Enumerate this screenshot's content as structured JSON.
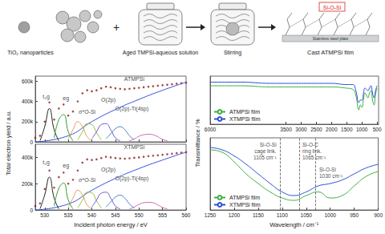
{
  "schematic": {
    "nanoparticles": "TiO₂ nanoparticles",
    "operator": "+",
    "solution": "Aged TMPSi-aqueous solution",
    "mixing": "Stirring",
    "film": "Cast ATMPSi film",
    "bond": "Si-O-Si",
    "substrate": "Stainless steel plate"
  },
  "chart_data": [
    {
      "type": "line",
      "ylabel": "Total electron yield / a.u.",
      "xlim": [
        528,
        560
      ],
      "xticks": [
        530,
        535,
        540,
        545,
        550,
        555,
        560
      ],
      "ylim": [
        0,
        650000
      ],
      "yticks": [
        0,
        {
          "value": 200000,
          "label": "200k"
        },
        {
          "value": 400000,
          "label": "400k"
        },
        {
          "value": 600000,
          "label": "600k"
        }
      ],
      "tick_labels": "y",
      "grid": false,
      "series": [
        {
          "type": "line",
          "color": "#3355dd",
          "line_style": "solid",
          "x": [
            528,
            535,
            540,
            545,
            550,
            555,
            560
          ],
          "values": [
            0,
            60000,
            200000,
            320000,
            420000,
            510000,
            590000
          ]
        },
        {
          "type": "line",
          "color": "#222222",
          "line_style": "solid",
          "x": [
            529,
            530,
            531,
            532,
            533
          ],
          "values": [
            10000,
            150000,
            330000,
            120000,
            10000
          ]
        },
        {
          "type": "line",
          "color": "#2e9e2e",
          "line_style": "solid",
          "x": [
            532,
            533,
            534,
            535,
            536
          ],
          "values": [
            40000,
            220000,
            270000,
            100000,
            10000
          ]
        },
        {
          "type": "line",
          "color": "#e89c5a",
          "line_style": "solid",
          "x": [
            535,
            536,
            537,
            538,
            539,
            540
          ],
          "values": [
            30000,
            120000,
            200000,
            150000,
            50000,
            10000
          ]
        },
        {
          "type": "line",
          "color": "#9bbb3c",
          "line_style": "solid",
          "x": [
            537,
            538,
            539,
            540,
            541,
            542
          ],
          "values": [
            20000,
            100000,
            180000,
            170000,
            90000,
            20000
          ]
        },
        {
          "type": "line",
          "color": "#6a5acd",
          "line_style": "solid",
          "x": [
            540,
            541,
            542,
            543,
            544,
            545,
            546
          ],
          "values": [
            30000,
            100000,
            170000,
            180000,
            120000,
            40000,
            10000
          ]
        },
        {
          "type": "line",
          "color": "#4a7fd0",
          "line_style": "solid",
          "x": [
            543,
            544,
            545,
            546,
            547,
            548,
            549
          ],
          "values": [
            30000,
            80000,
            130000,
            150000,
            120000,
            60000,
            20000
          ]
        },
        {
          "type": "line",
          "color": "#c86ab8",
          "line_style": "solid",
          "x": [
            548,
            549,
            550,
            551,
            552,
            553,
            554,
            555,
            556
          ],
          "values": [
            10000,
            30000,
            55000,
            70000,
            75000,
            70000,
            50000,
            25000,
            10000
          ]
        },
        {
          "type": "scatter",
          "color": "#8b1a1a",
          "marker": "circle",
          "x": [
            528,
            529,
            530,
            531,
            532,
            533,
            534,
            535,
            536,
            537,
            538,
            539,
            540,
            541,
            542,
            543,
            544,
            545,
            546,
            547,
            548,
            549,
            550,
            551,
            552,
            553,
            554,
            555,
            556,
            557,
            558,
            559,
            560
          ],
          "values": [
            40000,
            60000,
            200000,
            390000,
            220000,
            330000,
            370000,
            260000,
            300000,
            400000,
            480000,
            510000,
            500000,
            510000,
            530000,
            545000,
            540000,
            530000,
            525000,
            520000,
            525000,
            530000,
            535000,
            540000,
            545000,
            550000,
            555000,
            560000,
            565000,
            570000,
            575000,
            580000,
            585000
          ]
        }
      ],
      "annotations": [
        {
          "text": "t₂g",
          "x": 530.3,
          "y": 450000
        },
        {
          "text": "eg",
          "x": 534.5,
          "y": 430000
        },
        {
          "text": "σ*O-Si",
          "x": 539,
          "y": 300000
        },
        {
          "text": "O(2p)",
          "x": 543.5,
          "y": 420000
        },
        {
          "text": "O(2p)-Ti(4sp)",
          "x": 548.5,
          "y": 330000
        },
        {
          "text": "ATMPSi",
          "x": 549,
          "y": 620000
        }
      ]
    },
    {
      "type": "line",
      "xlabel": "Incident photon energy / eV",
      "xlim": [
        528,
        560
      ],
      "xticks": [
        530,
        535,
        540,
        545,
        550,
        555,
        560
      ],
      "ylim": [
        0,
        500000
      ],
      "yticks": [
        0,
        {
          "value": 200000,
          "label": "200k"
        },
        {
          "value": 400000,
          "label": "400k"
        }
      ],
      "grid": false,
      "series": [
        {
          "type": "line",
          "color": "#3355dd",
          "line_style": "solid",
          "x": [
            528,
            535,
            540,
            545,
            550,
            555,
            560
          ],
          "values": [
            0,
            45000,
            150000,
            240000,
            315000,
            380000,
            440000
          ]
        },
        {
          "type": "line",
          "color": "#222222",
          "line_style": "solid",
          "x": [
            529,
            530,
            531,
            532,
            533
          ],
          "values": [
            8000,
            115000,
            250000,
            90000,
            8000
          ]
        },
        {
          "type": "line",
          "color": "#2e9e2e",
          "line_style": "solid",
          "x": [
            532,
            533,
            534,
            535,
            536
          ],
          "values": [
            30000,
            165000,
            205000,
            75000,
            8000
          ]
        },
        {
          "type": "line",
          "color": "#e89c5a",
          "line_style": "solid",
          "x": [
            535,
            536,
            537,
            538,
            539,
            540
          ],
          "values": [
            22000,
            90000,
            150000,
            115000,
            38000,
            8000
          ]
        },
        {
          "type": "line",
          "color": "#9bbb3c",
          "line_style": "solid",
          "x": [
            537,
            538,
            539,
            540,
            541,
            542
          ],
          "values": [
            15000,
            75000,
            135000,
            130000,
            68000,
            15000
          ]
        },
        {
          "type": "line",
          "color": "#6a5acd",
          "line_style": "solid",
          "x": [
            540,
            541,
            542,
            543,
            544,
            545,
            546
          ],
          "values": [
            22000,
            75000,
            128000,
            135000,
            90000,
            30000,
            8000
          ]
        },
        {
          "type": "line",
          "color": "#4a7fd0",
          "line_style": "solid",
          "x": [
            543,
            544,
            545,
            546,
            547,
            548,
            549
          ],
          "values": [
            22000,
            60000,
            98000,
            112000,
            90000,
            45000,
            15000
          ]
        },
        {
          "type": "line",
          "color": "#c86ab8",
          "line_style": "solid",
          "x": [
            548,
            549,
            550,
            551,
            552,
            553,
            554,
            555,
            556
          ],
          "values": [
            8000,
            22000,
            42000,
            55000,
            58000,
            55000,
            38000,
            19000,
            8000
          ]
        },
        {
          "type": "scatter",
          "color": "#8b1a1a",
          "marker": "circle",
          "x": [
            528,
            529,
            530,
            531,
            532,
            533,
            534,
            535,
            536,
            537,
            538,
            539,
            540,
            541,
            542,
            543,
            544,
            545,
            546,
            547,
            548,
            549,
            550,
            551,
            552,
            553,
            554,
            555,
            556,
            557,
            558,
            559,
            560
          ],
          "values": [
            30000,
            50000,
            160000,
            300000,
            170000,
            250000,
            285000,
            200000,
            230000,
            300000,
            360000,
            385000,
            380000,
            385000,
            395000,
            405000,
            400000,
            395000,
            392000,
            390000,
            393000,
            397000,
            400000,
            405000,
            410000,
            413000,
            416000,
            420000,
            424000,
            428000,
            432000,
            436000,
            440000
          ]
        }
      ],
      "annotations": [
        {
          "text": "t₂g",
          "x": 530.3,
          "y": 360000
        },
        {
          "text": "eg",
          "x": 534.5,
          "y": 340000
        },
        {
          "text": "σ*O-Si",
          "x": 539,
          "y": 230000
        },
        {
          "text": "O(2p)",
          "x": 543.5,
          "y": 310000
        },
        {
          "text": "O(2p)-Ti(4sp)",
          "x": 548.5,
          "y": 240000
        },
        {
          "text": "XTMPSi",
          "x": 549,
          "y": 480000
        }
      ]
    },
    {
      "type": "line",
      "ylabel": "Transmittance / %",
      "xlim": [
        6000,
        450
      ],
      "xticks": [
        6000,
        3500,
        3000,
        2500,
        2000,
        1500,
        1000,
        500
      ],
      "ylim": [
        60,
        100
      ],
      "tick_labels": "x",
      "grid": false,
      "legend": "bottom-left",
      "x": [
        6000,
        5000,
        4000,
        3500,
        3000,
        2500,
        2000,
        1500,
        1300,
        1200,
        1100,
        1050,
        1000,
        950,
        900,
        850,
        800,
        750,
        700,
        650,
        600,
        550,
        500
      ],
      "series": [
        {
          "name": "ATMPSi film",
          "color": "#3cb043",
          "line_style": "solid",
          "values": [
            92,
            92,
            91,
            91,
            91,
            91,
            91,
            90,
            89,
            84,
            72,
            76,
            74,
            80,
            86,
            84,
            82,
            86,
            88,
            80,
            76,
            85,
            90
          ]
        },
        {
          "name": "XTMPSi film",
          "color": "#2a4fd6",
          "line_style": "solid",
          "values": [
            95,
            95,
            94,
            94,
            94,
            94,
            94,
            93,
            93,
            88,
            78,
            80,
            80,
            85,
            90,
            89,
            88,
            90,
            92,
            86,
            82,
            88,
            92
          ]
        }
      ]
    },
    {
      "type": "line",
      "xlabel": "Wavelength / cm⁻¹",
      "xlim": [
        1250,
        900
      ],
      "xticks": [
        1250,
        1200,
        1150,
        1100,
        1050,
        1000,
        950,
        900
      ],
      "ylim": [
        40,
        100
      ],
      "tick_labels": "x",
      "grid": false,
      "legend": "bottom-left",
      "x": [
        1250,
        1225,
        1200,
        1175,
        1150,
        1125,
        1100,
        1075,
        1050,
        1025,
        1000,
        975,
        950,
        925,
        900
      ],
      "series": [
        {
          "name": "ATMPSi film",
          "color": "#3cb043",
          "line_style": "solid",
          "values": [
            90,
            88,
            80,
            70,
            62,
            55,
            50,
            48,
            52,
            55,
            50,
            52,
            60,
            68,
            72
          ]
        },
        {
          "name": "XTMPSi film",
          "color": "#2a4fd6",
          "line_style": "solid",
          "values": [
            92,
            90,
            85,
            78,
            70,
            62,
            55,
            52,
            55,
            60,
            62,
            65,
            70,
            75,
            78
          ]
        }
      ],
      "vlines": [
        1105,
        1065,
        1030
      ],
      "annotations": [
        {
          "text": "Si-O-Si\ncage link.\n1105 cm⁻¹",
          "x": 1107,
          "y": 89
        },
        {
          "text": "Si-O-C\nring link.\n1065 cm⁻¹",
          "x": 1063,
          "y": 89
        },
        {
          "text": "Si-O-Si\n1030 cm⁻¹",
          "x": 1028,
          "y": 71
        }
      ]
    }
  ]
}
